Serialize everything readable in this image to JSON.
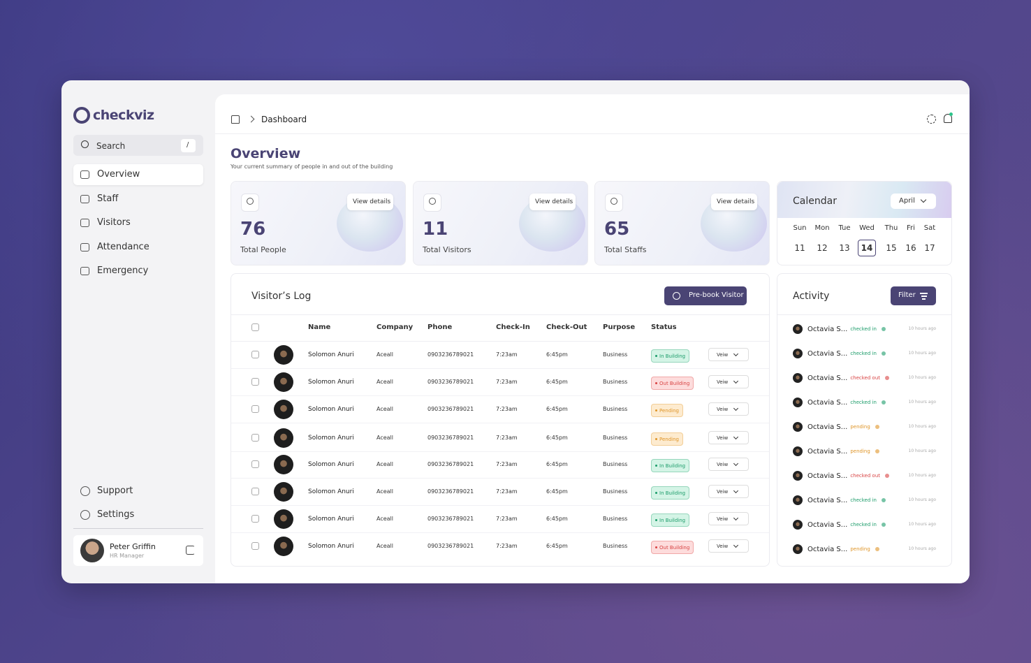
{
  "sidebar": {
    "logo": "checkviz",
    "search": {
      "placeholder": "Search",
      "shortcut": "/"
    },
    "nav": [
      "Overview",
      "Staff",
      "Visitors",
      "Attendance",
      "Emergency"
    ],
    "footer_nav": [
      "Support",
      "Settings"
    ],
    "user": {
      "name": "Peter Griffin",
      "role": "HR Manager"
    }
  },
  "header": {
    "breadcrumb": "Dashboard"
  },
  "overview": {
    "title": "Overview",
    "subtitle": "Your current summary of people in and out of the building",
    "stats": [
      {
        "value": 76,
        "label": "Total People",
        "action": "View details"
      },
      {
        "value": 11,
        "label": "Total Visitors",
        "action": "View details"
      },
      {
        "value": 65,
        "label": "Total Staffs",
        "action": "View details"
      }
    ]
  },
  "calendar": {
    "title": "Calendar",
    "month": "April",
    "weekdays": [
      "Sun",
      "Mon",
      "Tue",
      "Wed",
      "Thu",
      "Fri",
      "Sat"
    ],
    "dates": [
      11,
      12,
      13,
      14,
      15,
      16,
      17
    ],
    "selected_date": 14
  },
  "visitors_log": {
    "title": "Visitor’s Log",
    "button": "Pre-book Visitor",
    "columns": [
      "Name",
      "Company",
      "Phone",
      "Check-In",
      "Check-Out",
      "Purpose",
      "Status"
    ],
    "rows": [
      {
        "name": "Solomon Anuri",
        "company": "Aceall",
        "phone": "0903236789021",
        "check_in": "7:23am",
        "check_out": "6:45pm",
        "purpose": "Business",
        "status": "In Building",
        "tone": "green",
        "action": "Veiw"
      },
      {
        "name": "Solomon Anuri",
        "company": "Aceall",
        "phone": "0903236789021",
        "check_in": "7:23am",
        "check_out": "6:45pm",
        "purpose": "Business",
        "status": "Out Building",
        "tone": "red",
        "action": "Veiw"
      },
      {
        "name": "Solomon Anuri",
        "company": "Aceall",
        "phone": "0903236789021",
        "check_in": "7:23am",
        "check_out": "6:45pm",
        "purpose": "Business",
        "status": "Pending",
        "tone": "amber",
        "action": "Veiw"
      },
      {
        "name": "Solomon Anuri",
        "company": "Aceall",
        "phone": "0903236789021",
        "check_in": "7:23am",
        "check_out": "6:45pm",
        "purpose": "Business",
        "status": "Pending",
        "tone": "amber",
        "action": "Veiw"
      },
      {
        "name": "Solomon Anuri",
        "company": "Aceall",
        "phone": "0903236789021",
        "check_in": "7:23am",
        "check_out": "6:45pm",
        "purpose": "Business",
        "status": "In Building",
        "tone": "green",
        "action": "Veiw"
      },
      {
        "name": "Solomon Anuri",
        "company": "Aceall",
        "phone": "0903236789021",
        "check_in": "7:23am",
        "check_out": "6:45pm",
        "purpose": "Business",
        "status": "In Building",
        "tone": "green",
        "action": "Veiw"
      },
      {
        "name": "Solomon Anuri",
        "company": "Aceall",
        "phone": "0903236789021",
        "check_in": "7:23am",
        "check_out": "6:45pm",
        "purpose": "Business",
        "status": "In Building",
        "tone": "green",
        "action": "Veiw"
      },
      {
        "name": "Solomon Anuri",
        "company": "Aceall",
        "phone": "0903236789021",
        "check_in": "7:23am",
        "check_out": "6:45pm",
        "purpose": "Business",
        "status": "Out Building",
        "tone": "red",
        "action": "Veiw"
      }
    ]
  },
  "activity": {
    "title": "Activity",
    "filter": "Filter",
    "items": [
      {
        "name": "Octavia S...",
        "status": "checked in",
        "tone": "green",
        "time": "10 hours ago"
      },
      {
        "name": "Octavia S...",
        "status": "checked in",
        "tone": "green",
        "time": "10 hours ago"
      },
      {
        "name": "Octavia S...",
        "status": "checked out",
        "tone": "red",
        "time": "10 hours ago"
      },
      {
        "name": "Octavia S...",
        "status": "checked in",
        "tone": "green",
        "time": "10 hours ago"
      },
      {
        "name": "Octavia S...",
        "status": "pending",
        "tone": "amber",
        "time": "10 hours ago"
      },
      {
        "name": "Octavia S...",
        "status": "pending",
        "tone": "amber",
        "time": "10 hours ago"
      },
      {
        "name": "Octavia S...",
        "status": "checked out",
        "tone": "red",
        "time": "10 hours ago"
      },
      {
        "name": "Octavia S...",
        "status": "checked in",
        "tone": "green",
        "time": "10 hours ago"
      },
      {
        "name": "Octavia S...",
        "status": "checked in",
        "tone": "green",
        "time": "10 hours ago"
      },
      {
        "name": "Octavia S...",
        "status": "pending",
        "tone": "amber",
        "time": "10 hours ago"
      }
    ]
  }
}
